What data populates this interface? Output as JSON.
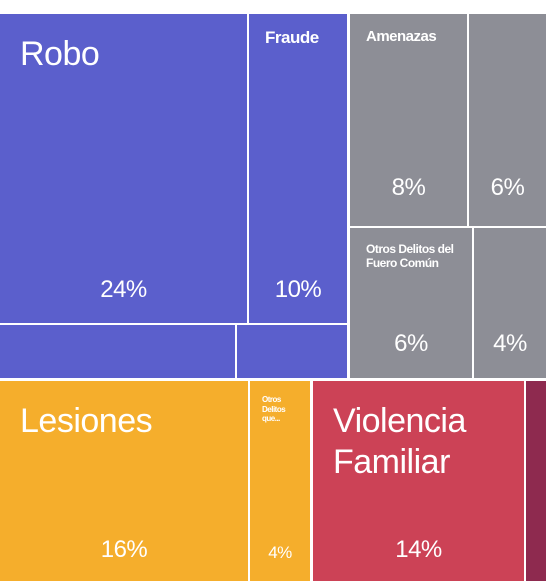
{
  "chart_data": {
    "type": "treemap",
    "categories": [
      "Robo",
      "Fraude",
      null,
      null,
      "Amenazas",
      null,
      "Otros Delitos del Fuero Común",
      null,
      "Lesiones",
      "Otros Delitos que...",
      "Violencia Familiar",
      null
    ],
    "values": [
      24,
      10,
      4,
      2,
      8,
      6,
      6,
      4,
      16,
      4,
      14,
      1
    ],
    "value_labels": [
      "24%",
      "10%",
      null,
      null,
      "8%",
      "6%",
      "6%",
      "4%",
      "16%",
      "4%",
      "14%",
      null
    ],
    "colors": [
      "#5b5fcc",
      "#5b5fcc",
      "#5b5fcc",
      "#5b5fcc",
      "#8d8e96",
      "#8d8e96",
      "#8d8e96",
      "#8d8e96",
      "#f5ae2c",
      "#f5ae2c",
      "#cc4256",
      "#8e2a4f"
    ]
  }
}
